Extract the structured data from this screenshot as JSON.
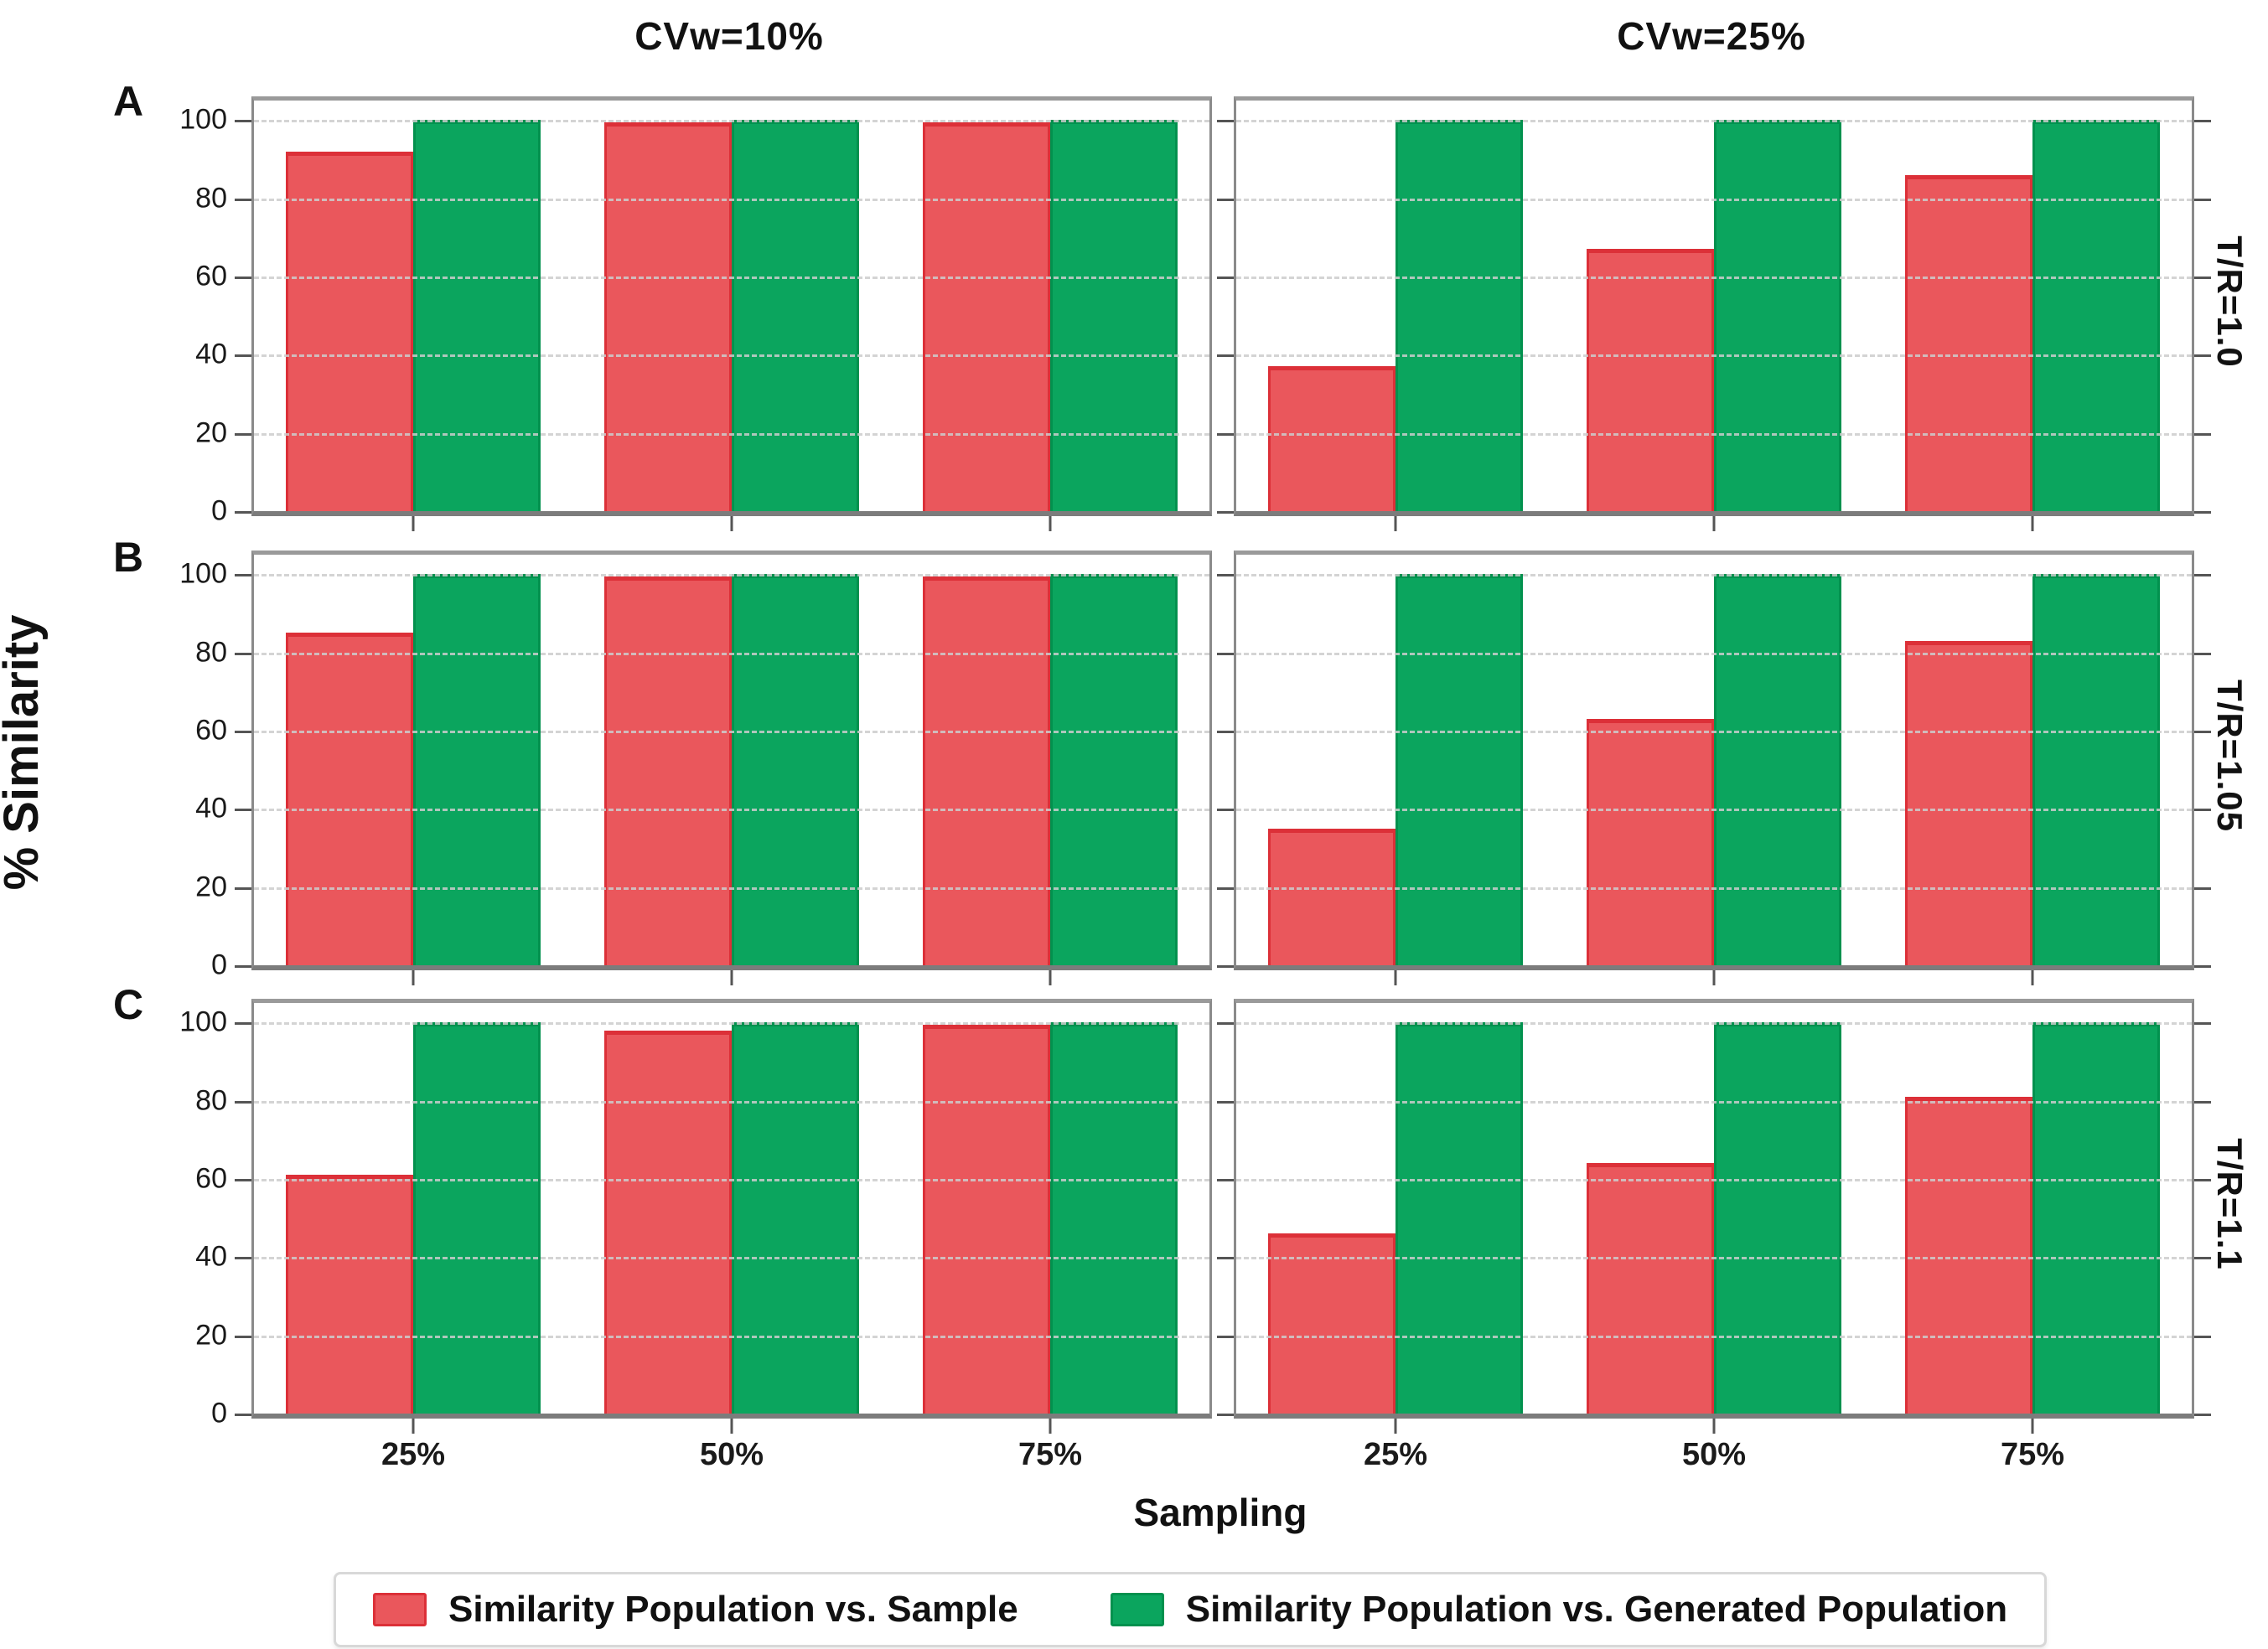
{
  "figure": {
    "ylabel": "% Similarity",
    "xlabel": "Sampling"
  },
  "chart_data": {
    "type": "bar",
    "title": "",
    "categories": [
      "25%",
      "50%",
      "75%"
    ],
    "yticks": [
      0,
      20,
      40,
      60,
      80,
      100
    ],
    "ylim": [
      0,
      105
    ],
    "grid": true,
    "legend_position": "bottom",
    "xlabel": "Sampling",
    "ylabel": "% Similarity",
    "col_titles": [
      "CVw=10%",
      "CVw=25%"
    ],
    "row_titles": [
      "T/R=1.0",
      "T/R=1.05",
      "T/R=1.1"
    ],
    "panel_letters": [
      "A",
      "B",
      "C"
    ],
    "series": [
      {
        "name": "Similarity Population vs. Sample",
        "color": "#EA575C",
        "edge": "#DC3038"
      },
      {
        "name": "Similarity Population vs. Generated Population",
        "color": "#0BA55E",
        "edge": "#02914E"
      }
    ],
    "panels": [
      {
        "row_title": "T/R=1.0",
        "col_title": "CVw=10%",
        "values": [
          [
            92,
            99.5,
            99.5
          ],
          [
            100,
            100,
            100
          ]
        ]
      },
      {
        "row_title": "T/R=1.0",
        "col_title": "CVw=25%",
        "values": [
          [
            37,
            67,
            86
          ],
          [
            100,
            100,
            100
          ]
        ]
      },
      {
        "row_title": "T/R=1.05",
        "col_title": "CVw=10%",
        "values": [
          [
            85,
            99.5,
            99.5
          ],
          [
            100,
            100,
            100
          ]
        ]
      },
      {
        "row_title": "T/R=1.05",
        "col_title": "CVw=25%",
        "values": [
          [
            35,
            63,
            83
          ],
          [
            100,
            100,
            100
          ]
        ]
      },
      {
        "row_title": "T/R=1.1",
        "col_title": "CVw=10%",
        "values": [
          [
            61,
            98,
            99.5
          ],
          [
            100,
            100,
            100
          ]
        ]
      },
      {
        "row_title": "T/R=1.1",
        "col_title": "CVw=25%",
        "values": [
          [
            46,
            64,
            81
          ],
          [
            100,
            100,
            100
          ]
        ]
      }
    ]
  }
}
